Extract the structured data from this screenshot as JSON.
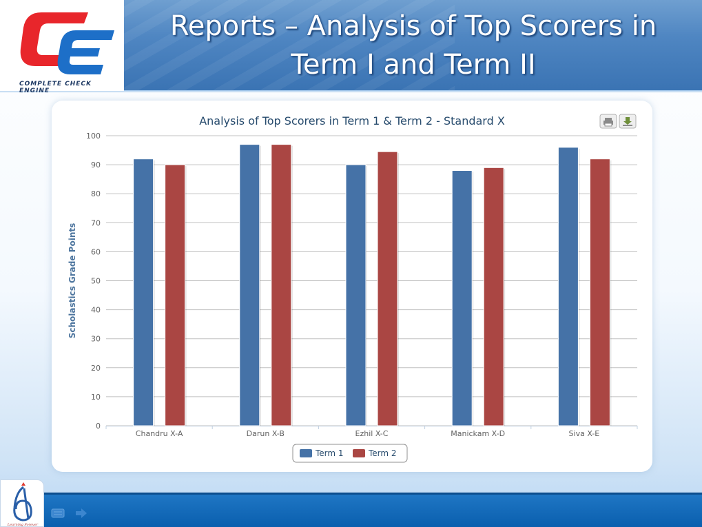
{
  "slide": {
    "title_line1": "Reports – Analysis of Top Scorers in",
    "title_line2": "Term I and Term II",
    "logo_caption": "COMPLETE CHECK ENGINE",
    "footer_logo_caption": "Learning Forever"
  },
  "toolbar": {
    "print_icon": "printer-icon",
    "download_icon": "download-icon"
  },
  "colors": {
    "term1": "#4572a7",
    "term2": "#aa4643",
    "header": "#4a80bf",
    "footer": "#0e64b2"
  },
  "chart_data": {
    "type": "bar",
    "title": "Analysis of Top Scorers in Term 1 & Term 2 - Standard X",
    "xlabel": "",
    "ylabel": "Scholastics Grade Points",
    "ylim": [
      0,
      100
    ],
    "yticks": [
      0,
      10,
      20,
      30,
      40,
      50,
      60,
      70,
      80,
      90,
      100
    ],
    "grid": true,
    "legend": "bottom-center",
    "categories": [
      "Chandru X-A",
      "Darun X-B",
      "Ezhil X-C",
      "Manickam X-D",
      "Siva X-E"
    ],
    "series": [
      {
        "name": "Term 1",
        "color": "#4572a7",
        "values": [
          92,
          97,
          90,
          88,
          96
        ]
      },
      {
        "name": "Term 2",
        "color": "#aa4643",
        "values": [
          90,
          97,
          94.5,
          89,
          92
        ]
      }
    ]
  }
}
